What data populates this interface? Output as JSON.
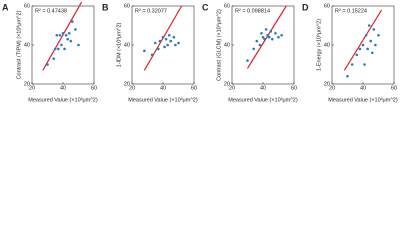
{
  "chart_data": [
    {
      "type": "scatter",
      "panel": "A",
      "annotation": "R² = 0.47438",
      "xlabel": "Measured Value (×10³μm^2)",
      "ylabel": "Contrast (TIPM) (×10³μm^2)",
      "xlim": [
        20,
        60
      ],
      "ylim": [
        20,
        60
      ],
      "xticks": [
        20,
        40,
        60
      ],
      "yticks": [
        20,
        40,
        60
      ],
      "points": {
        "color": "#2b7bb9",
        "x": [
          30,
          34,
          35,
          36,
          37,
          38,
          39,
          40,
          41,
          42,
          43,
          44,
          45,
          46,
          48,
          50
        ],
        "y": [
          30,
          33,
          38,
          45,
          38,
          45,
          40,
          46,
          38,
          45,
          43,
          46,
          42,
          52,
          48,
          40
        ]
      },
      "fit": {
        "color": "#e0202a",
        "x": [
          27,
          52
        ],
        "y": [
          27,
          62
        ]
      }
    },
    {
      "type": "scatter",
      "panel": "B",
      "annotation": "R² = 0.32077",
      "xlabel": "Measured Value (×10³μm^2)",
      "ylabel": "1-IDM (×10³μm^2)",
      "xlim": [
        20,
        60
      ],
      "ylim": [
        20,
        60
      ],
      "xticks": [
        20,
        40,
        60
      ],
      "yticks": [
        20,
        40,
        60
      ],
      "points": {
        "color": "#2b7bb9",
        "x": [
          28,
          33,
          35,
          37,
          38,
          40,
          41,
          42,
          43,
          44,
          45,
          47,
          48,
          50
        ],
        "y": [
          37,
          35,
          41,
          38,
          42,
          44,
          39,
          43,
          40,
          45,
          42,
          44,
          40,
          41
        ]
      },
      "fit": {
        "color": "#e0202a",
        "x": [
          28,
          52
        ],
        "y": [
          27,
          60
        ]
      }
    },
    {
      "type": "scatter",
      "panel": "C",
      "annotation": "R² = 0.098814",
      "xlabel": "Measured Value (×10³μm^2)",
      "ylabel": "Contrast (GLCM) (×10³μm^2)",
      "xlim": [
        20,
        60
      ],
      "ylim": [
        20,
        60
      ],
      "xticks": [
        20,
        40,
        60
      ],
      "yticks": [
        20,
        40,
        60
      ],
      "points": {
        "color": "#2b7bb9",
        "x": [
          30,
          34,
          36,
          38,
          39,
          40,
          41,
          42,
          43,
          44,
          45,
          46,
          48,
          50,
          52
        ],
        "y": [
          32,
          38,
          42,
          40,
          46,
          44,
          43,
          48,
          45,
          44,
          47,
          43,
          46,
          44,
          45
        ]
      },
      "fit": {
        "color": "#e0202a",
        "x": [
          30,
          55
        ],
        "y": [
          28,
          60
        ]
      }
    },
    {
      "type": "scatter",
      "panel": "D",
      "annotation": "R² = 0.15224",
      "xlabel": "Measured Value (×10³μm^2)",
      "ylabel": "1-Energy (×10³μm^2)",
      "xlim": [
        20,
        60
      ],
      "ylim": [
        20,
        60
      ],
      "xticks": [
        20,
        40,
        60
      ],
      "yticks": [
        20,
        40,
        60
      ],
      "points": {
        "color": "#2b7bb9",
        "x": [
          30,
          33,
          36,
          38,
          40,
          41,
          42,
          43,
          44,
          45,
          46,
          47,
          48,
          50
        ],
        "y": [
          24,
          30,
          35,
          38,
          40,
          30,
          45,
          38,
          50,
          42,
          36,
          48,
          40,
          45
        ]
      },
      "fit": {
        "color": "#e0202a",
        "x": [
          28,
          52
        ],
        "y": [
          27,
          58
        ]
      }
    }
  ]
}
